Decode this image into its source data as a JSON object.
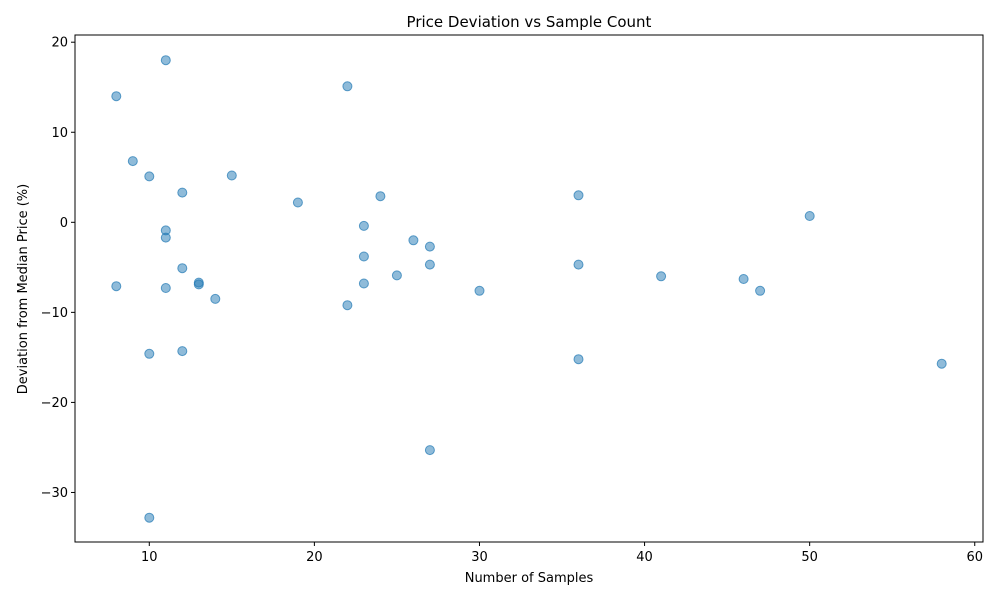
{
  "chart_data": {
    "type": "scatter",
    "title": "Price Deviation vs Sample Count",
    "xlabel": "Number of Samples",
    "ylabel": "Deviation from Median Price (%)",
    "xlim": [
      5.5,
      60.5
    ],
    "ylim": [
      -35.5,
      20.8
    ],
    "xticks": [
      10,
      20,
      30,
      40,
      50,
      60
    ],
    "yticks": [
      -30,
      -20,
      -10,
      0,
      10,
      20
    ],
    "grid": false,
    "marker_color": "#1f77b4",
    "marker_alpha": 0.5,
    "points": [
      {
        "x": 11,
        "y": 18.0
      },
      {
        "x": 8,
        "y": 14.0
      },
      {
        "x": 22,
        "y": 15.1
      },
      {
        "x": 9,
        "y": 6.8
      },
      {
        "x": 10,
        "y": 5.1
      },
      {
        "x": 15,
        "y": 5.2
      },
      {
        "x": 12,
        "y": 3.3
      },
      {
        "x": 19,
        "y": 2.2
      },
      {
        "x": 24,
        "y": 2.9
      },
      {
        "x": 36,
        "y": 3.0
      },
      {
        "x": 50,
        "y": 0.7
      },
      {
        "x": 23,
        "y": -0.4
      },
      {
        "x": 11,
        "y": -0.9
      },
      {
        "x": 11,
        "y": -1.7
      },
      {
        "x": 26,
        "y": -2.0
      },
      {
        "x": 27,
        "y": -2.7
      },
      {
        "x": 23,
        "y": -3.8
      },
      {
        "x": 27,
        "y": -4.7
      },
      {
        "x": 36,
        "y": -4.7
      },
      {
        "x": 12,
        "y": -5.1
      },
      {
        "x": 25,
        "y": -5.9
      },
      {
        "x": 41,
        "y": -6.0
      },
      {
        "x": 46,
        "y": -6.3
      },
      {
        "x": 13,
        "y": -6.7
      },
      {
        "x": 13,
        "y": -6.9
      },
      {
        "x": 23,
        "y": -6.8
      },
      {
        "x": 8,
        "y": -7.1
      },
      {
        "x": 11,
        "y": -7.3
      },
      {
        "x": 30,
        "y": -7.6
      },
      {
        "x": 47,
        "y": -7.6
      },
      {
        "x": 14,
        "y": -8.5
      },
      {
        "x": 22,
        "y": -9.2
      },
      {
        "x": 12,
        "y": -14.3
      },
      {
        "x": 10,
        "y": -14.6
      },
      {
        "x": 36,
        "y": -15.2
      },
      {
        "x": 58,
        "y": -15.7
      },
      {
        "x": 27,
        "y": -25.3
      },
      {
        "x": 10,
        "y": -32.8
      }
    ]
  }
}
